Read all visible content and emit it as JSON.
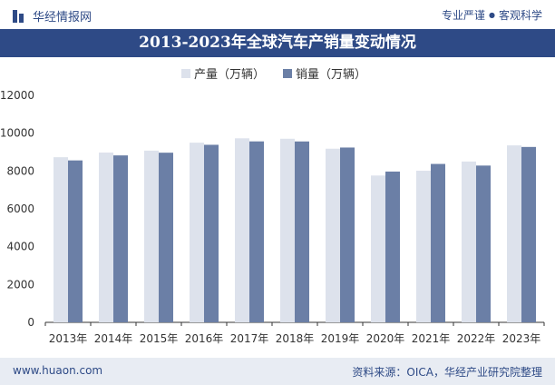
{
  "header": {
    "brand": "华经情报网",
    "slogan_left": "专业严谨",
    "slogan_sep": "●",
    "slogan_right": "客观科学"
  },
  "chart_title": "2013-2023年全球汽车产销量变动情况",
  "footer": {
    "website": "www.huaon.com",
    "source": "资料来源：OICA，华经产业研究院整理"
  },
  "colors": {
    "brand": "#2e4a86",
    "production": "#dde2ec",
    "sales": "#6b7fa6"
  },
  "chart_data": {
    "type": "bar",
    "title": "2013-2023年全球汽车产销量变动情况",
    "categories": [
      "2013年",
      "2014年",
      "2015年",
      "2016年",
      "2017年",
      "2018年",
      "2019年",
      "2020年",
      "2021年",
      "2022年",
      "2023年"
    ],
    "series": [
      {
        "name": "产量（万辆）",
        "values": [
          8730,
          8975,
          9078,
          9498,
          9730,
          9706,
          9179,
          7762,
          8015,
          8502,
          9355
        ]
      },
      {
        "name": "销量（万辆）",
        "values": [
          8560,
          8825,
          8968,
          9386,
          9566,
          9563,
          9242,
          7971,
          8374,
          8288,
          9272
        ]
      }
    ],
    "yticks": [
      0,
      2000,
      4000,
      6000,
      8000,
      10000,
      12000
    ],
    "ylim": [
      0,
      12000
    ],
    "legend_position": "top-center",
    "grid": false
  }
}
